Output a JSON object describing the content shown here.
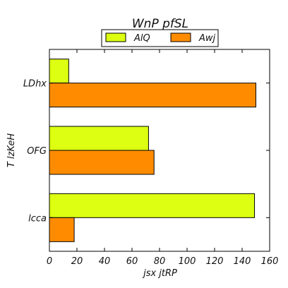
{
  "chart_data": {
    "type": "bar",
    "orientation": "horizontal",
    "title": "WnP pfSL",
    "xlabel": "jsx  jtRP",
    "ylabel": "T lzKeH",
    "categories": [
      "LDhx",
      "OFG",
      "lcca"
    ],
    "series": [
      {
        "name": "AlQ",
        "color": "#ddff11",
        "values": [
          14,
          72,
          149
        ]
      },
      {
        "name": "Awj",
        "color": "#ff8c00",
        "values": [
          150,
          76,
          18
        ]
      }
    ],
    "xlim": [
      0,
      160
    ],
    "xticks": [
      0,
      20,
      40,
      60,
      80,
      100,
      120,
      140,
      160
    ],
    "grid": false,
    "legend_position": "top-center"
  }
}
